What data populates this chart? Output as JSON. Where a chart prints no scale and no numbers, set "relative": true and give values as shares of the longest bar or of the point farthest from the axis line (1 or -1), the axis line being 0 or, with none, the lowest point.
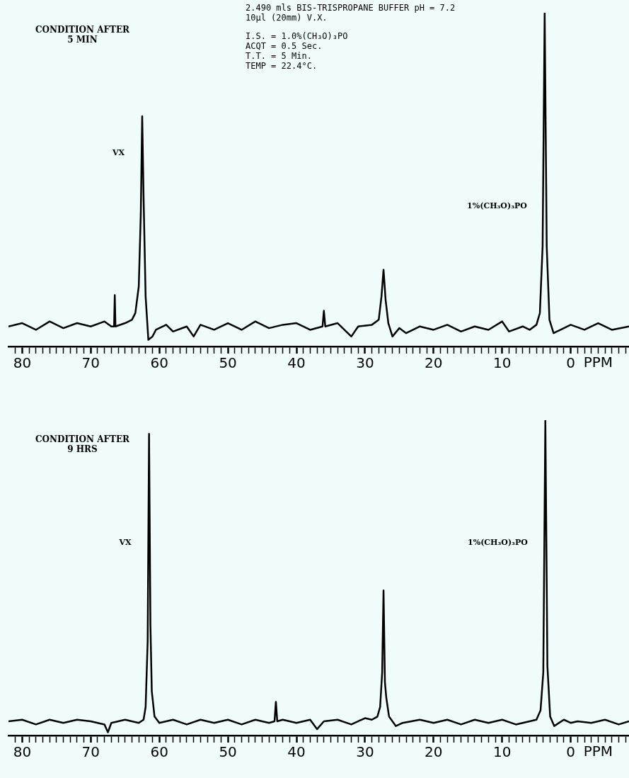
{
  "chart_data": [
    {
      "type": "line",
      "relative": true,
      "title": "CONDITION AFTER\n5 MIN",
      "xlabel": "PPM",
      "xlim": [
        82,
        -8.5
      ],
      "xticks": [
        80,
        70,
        60,
        50,
        40,
        30,
        20,
        10,
        0,
        {
          "value": 81,
          "label": null
        },
        {
          "value": 79,
          "label": null
        },
        {
          "value": 78,
          "label": null
        },
        {
          "value": 77,
          "label": null
        },
        {
          "value": 76,
          "label": null
        },
        {
          "value": 75,
          "label": null
        },
        {
          "value": 74,
          "label": null
        },
        {
          "value": 73,
          "label": null
        },
        {
          "value": 72,
          "label": null
        },
        {
          "value": 71,
          "label": null
        },
        {
          "value": 69,
          "label": null
        },
        {
          "value": 68,
          "label": null
        },
        {
          "value": 67,
          "label": null
        },
        {
          "value": 66,
          "label": null
        },
        {
          "value": 65,
          "label": null
        },
        {
          "value": 64,
          "label": null
        },
        {
          "value": 63,
          "label": null
        },
        {
          "value": 62,
          "label": null
        },
        {
          "value": 61,
          "label": null
        },
        {
          "value": 59,
          "label": null
        },
        {
          "value": 58,
          "label": null
        },
        {
          "value": 57,
          "label": null
        },
        {
          "value": 56,
          "label": null
        },
        {
          "value": 55,
          "label": null
        },
        {
          "value": 54,
          "label": null
        },
        {
          "value": 53,
          "label": null
        },
        {
          "value": 52,
          "label": null
        },
        {
          "value": 51,
          "label": null
        },
        {
          "value": 49,
          "label": null
        },
        {
          "value": 48,
          "label": null
        },
        {
          "value": 47,
          "label": null
        },
        {
          "value": 46,
          "label": null
        },
        {
          "value": 45,
          "label": null
        },
        {
          "value": 44,
          "label": null
        },
        {
          "value": 43,
          "label": null
        },
        {
          "value": 42,
          "label": null
        },
        {
          "value": 41,
          "label": null
        },
        {
          "value": 39,
          "label": null
        },
        {
          "value": 38,
          "label": null
        },
        {
          "value": 37,
          "label": null
        },
        {
          "value": 36,
          "label": null
        },
        {
          "value": 35,
          "label": null
        },
        {
          "value": 34,
          "label": null
        },
        {
          "value": 33,
          "label": null
        },
        {
          "value": 32,
          "label": null
        },
        {
          "value": 31,
          "label": null
        },
        {
          "value": 29,
          "label": null
        },
        {
          "value": 28,
          "label": null
        },
        {
          "value": 27,
          "label": null
        },
        {
          "value": 26,
          "label": null
        },
        {
          "value": 25,
          "label": null
        },
        {
          "value": 24,
          "label": null
        },
        {
          "value": 23,
          "label": null
        },
        {
          "value": 22,
          "label": null
        },
        {
          "value": 21,
          "label": null
        },
        {
          "value": 19,
          "label": null
        },
        {
          "value": 18,
          "label": null
        },
        {
          "value": 17,
          "label": null
        },
        {
          "value": 16,
          "label": null
        },
        {
          "value": 15,
          "label": null
        },
        {
          "value": 14,
          "label": null
        },
        {
          "value": 13,
          "label": null
        },
        {
          "value": 12,
          "label": null
        },
        {
          "value": 11,
          "label": null
        },
        {
          "value": 9,
          "label": null
        },
        {
          "value": 8,
          "label": null
        },
        {
          "value": 7,
          "label": null
        },
        {
          "value": 6,
          "label": null
        },
        {
          "value": 5,
          "label": null
        },
        {
          "value": 4,
          "label": null
        },
        {
          "value": 3,
          "label": null
        },
        {
          "value": 2,
          "label": null
        },
        {
          "value": 1,
          "label": null
        },
        {
          "value": -1,
          "label": null
        },
        {
          "value": -2,
          "label": null
        },
        {
          "value": -3,
          "label": null
        },
        {
          "value": -4,
          "label": null
        },
        {
          "value": -5,
          "label": null
        },
        {
          "value": -6,
          "label": null
        },
        {
          "value": -7,
          "label": null
        },
        {
          "value": -8,
          "label": null
        }
      ],
      "x": [
        82,
        80,
        78,
        76,
        74,
        72,
        70,
        68,
        67,
        66.6,
        66.5,
        66.4,
        65,
        64,
        63.5,
        63,
        62.7,
        62.5,
        62.3,
        62,
        61.6,
        61,
        60.5,
        59,
        58,
        56,
        55,
        54,
        52,
        50,
        48,
        46,
        44,
        42,
        40,
        38,
        36.2,
        36,
        35.8,
        34,
        32,
        31,
        29,
        28,
        27.6,
        27.3,
        27,
        26.6,
        26,
        25,
        24,
        22,
        20,
        18,
        16,
        14,
        12,
        10,
        9,
        7,
        6,
        5,
        4.5,
        4.1,
        3.8,
        3.5,
        3.1,
        2.5,
        1,
        0,
        -2,
        -4,
        -6,
        -8.5
      ],
      "series": [
        {
          "color": "#000000",
          "values": [
            0.06,
            0.07,
            0.05,
            0.075,
            0.055,
            0.07,
            0.06,
            0.075,
            0.06,
            0.06,
            0.154,
            0.06,
            0.07,
            0.08,
            0.1,
            0.18,
            0.4,
            0.69,
            0.45,
            0.15,
            0.02,
            0.03,
            0.05,
            0.065,
            0.045,
            0.06,
            0.03,
            0.065,
            0.05,
            0.07,
            0.05,
            0.075,
            0.055,
            0.065,
            0.07,
            0.05,
            0.06,
            0.107,
            0.06,
            0.07,
            0.03,
            0.06,
            0.065,
            0.08,
            0.15,
            0.23,
            0.14,
            0.07,
            0.03,
            0.055,
            0.04,
            0.06,
            0.05,
            0.065,
            0.045,
            0.06,
            0.05,
            0.075,
            0.045,
            0.06,
            0.05,
            0.065,
            0.1,
            0.3,
            1,
            0.3,
            0.08,
            0.04,
            0.055,
            0.065,
            0.05,
            0.07,
            0.05,
            0.06
          ]
        }
      ],
      "annotations": [
        "2.490 mls BIS-TRISPROPANE BUFFER pH = 7.2",
        "10µl (20mm) V.X.",
        "I.S. = 1.0%(CH₃O)₃PO",
        "ACQT = 0.5 Sec.",
        "T.T. = 5 Min.",
        "TEMP = 22.4°C.",
        {
          "text": "VX",
          "x": 62.5,
          "y": 0.58
        },
        {
          "text": "1%(CH₃O)₃PO",
          "x": 3.8,
          "y": 0.42
        }
      ]
    },
    {
      "type": "line",
      "relative": true,
      "title": "CONDITION AFTER\n9 HRS",
      "xlabel": "PPM",
      "xlim": [
        82,
        -8.5
      ],
      "xticks": [
        80,
        70,
        60,
        50,
        40,
        30,
        20,
        10,
        0,
        {
          "value": 81,
          "label": null
        },
        {
          "value": 79,
          "label": null
        },
        {
          "value": 78,
          "label": null
        },
        {
          "value": 77,
          "label": null
        },
        {
          "value": 76,
          "label": null
        },
        {
          "value": 75,
          "label": null
        },
        {
          "value": 74,
          "label": null
        },
        {
          "value": 73,
          "label": null
        },
        {
          "value": 72,
          "label": null
        },
        {
          "value": 71,
          "label": null
        },
        {
          "value": 69,
          "label": null
        },
        {
          "value": 68,
          "label": null
        },
        {
          "value": 67,
          "label": null
        },
        {
          "value": 66,
          "label": null
        },
        {
          "value": 65,
          "label": null
        },
        {
          "value": 64,
          "label": null
        },
        {
          "value": 63,
          "label": null
        },
        {
          "value": 62,
          "label": null
        },
        {
          "value": 61,
          "label": null
        },
        {
          "value": 59,
          "label": null
        },
        {
          "value": 58,
          "label": null
        },
        {
          "value": 57,
          "label": null
        },
        {
          "value": 56,
          "label": null
        },
        {
          "value": 55,
          "label": null
        },
        {
          "value": 54,
          "label": null
        },
        {
          "value": 53,
          "label": null
        },
        {
          "value": 52,
          "label": null
        },
        {
          "value": 51,
          "label": null
        },
        {
          "value": 49,
          "label": null
        },
        {
          "value": 48,
          "label": null
        },
        {
          "value": 47,
          "label": null
        },
        {
          "value": 46,
          "label": null
        },
        {
          "value": 45,
          "label": null
        },
        {
          "value": 44,
          "label": null
        },
        {
          "value": 43,
          "label": null
        },
        {
          "value": 42,
          "label": null
        },
        {
          "value": 41,
          "label": null
        },
        {
          "value": 39,
          "label": null
        },
        {
          "value": 38,
          "label": null
        },
        {
          "value": 37,
          "label": null
        },
        {
          "value": 36,
          "label": null
        },
        {
          "value": 35,
          "label": null
        },
        {
          "value": 34,
          "label": null
        },
        {
          "value": 33,
          "label": null
        },
        {
          "value": 32,
          "label": null
        },
        {
          "value": 31,
          "label": null
        },
        {
          "value": 29,
          "label": null
        },
        {
          "value": 28,
          "label": null
        },
        {
          "value": 27,
          "label": null
        },
        {
          "value": 26,
          "label": null
        },
        {
          "value": 25,
          "label": null
        },
        {
          "value": 24,
          "label": null
        },
        {
          "value": 23,
          "label": null
        },
        {
          "value": 22,
          "label": null
        },
        {
          "value": 21,
          "label": null
        },
        {
          "value": 19,
          "label": null
        },
        {
          "value": 18,
          "label": null
        },
        {
          "value": 17,
          "label": null
        },
        {
          "value": 16,
          "label": null
        },
        {
          "value": 15,
          "label": null
        },
        {
          "value": 14,
          "label": null
        },
        {
          "value": 13,
          "label": null
        },
        {
          "value": 12,
          "label": null
        },
        {
          "value": 11,
          "label": null
        },
        {
          "value": 9,
          "label": null
        },
        {
          "value": 8,
          "label": null
        },
        {
          "value": 7,
          "label": null
        },
        {
          "value": 6,
          "label": null
        },
        {
          "value": 5,
          "label": null
        },
        {
          "value": 4,
          "label": null
        },
        {
          "value": 3,
          "label": null
        },
        {
          "value": 2,
          "label": null
        },
        {
          "value": 1,
          "label": null
        },
        {
          "value": -1,
          "label": null
        },
        {
          "value": -2,
          "label": null
        },
        {
          "value": -3,
          "label": null
        },
        {
          "value": -4,
          "label": null
        },
        {
          "value": -5,
          "label": null
        },
        {
          "value": -6,
          "label": null
        },
        {
          "value": -7,
          "label": null
        },
        {
          "value": -8,
          "label": null
        }
      ],
      "x": [
        82,
        80,
        78,
        76,
        74,
        72,
        70,
        68,
        67.5,
        67,
        65,
        63,
        62.3,
        62,
        61.7,
        61.5,
        61.3,
        61.1,
        60.7,
        60,
        58,
        56,
        54,
        52,
        50,
        48,
        46,
        44,
        43.2,
        43,
        42.8,
        42,
        40,
        38,
        37,
        36,
        34,
        32,
        30,
        29,
        28.2,
        27.8,
        27.5,
        27.3,
        27.1,
        26.9,
        26.5,
        25.5,
        24.5,
        22,
        20,
        18,
        16,
        14,
        12,
        10,
        8,
        6,
        5,
        4.4,
        4,
        3.7,
        3.4,
        3,
        2.4,
        1,
        0,
        -1,
        -3,
        -5,
        -7,
        -8.5
      ],
      "series": [
        {
          "color": "#000000",
          "values": [
            0.045,
            0.05,
            0.035,
            0.05,
            0.04,
            0.05,
            0.045,
            0.035,
            0.01,
            0.04,
            0.05,
            0.04,
            0.05,
            0.09,
            0.3,
            0.957,
            0.35,
            0.14,
            0.06,
            0.04,
            0.05,
            0.035,
            0.05,
            0.04,
            0.05,
            0.035,
            0.05,
            0.04,
            0.045,
            0.107,
            0.045,
            0.05,
            0.04,
            0.05,
            0.02,
            0.045,
            0.05,
            0.035,
            0.055,
            0.05,
            0.06,
            0.09,
            0.2,
            0.46,
            0.17,
            0.12,
            0.06,
            0.03,
            0.04,
            0.05,
            0.04,
            0.05,
            0.035,
            0.05,
            0.04,
            0.05,
            0.035,
            0.045,
            0.05,
            0.08,
            0.2,
            1,
            0.22,
            0.06,
            0.03,
            0.05,
            0.04,
            0.045,
            0.04,
            0.05,
            0.035,
            0.045
          ]
        }
      ],
      "annotations": [
        {
          "text": "VX",
          "x": 61.5,
          "y": 0.61
        },
        {
          "text": "1%(CH₃O)₃PO",
          "x": 3.7,
          "y": 0.61
        }
      ]
    }
  ]
}
